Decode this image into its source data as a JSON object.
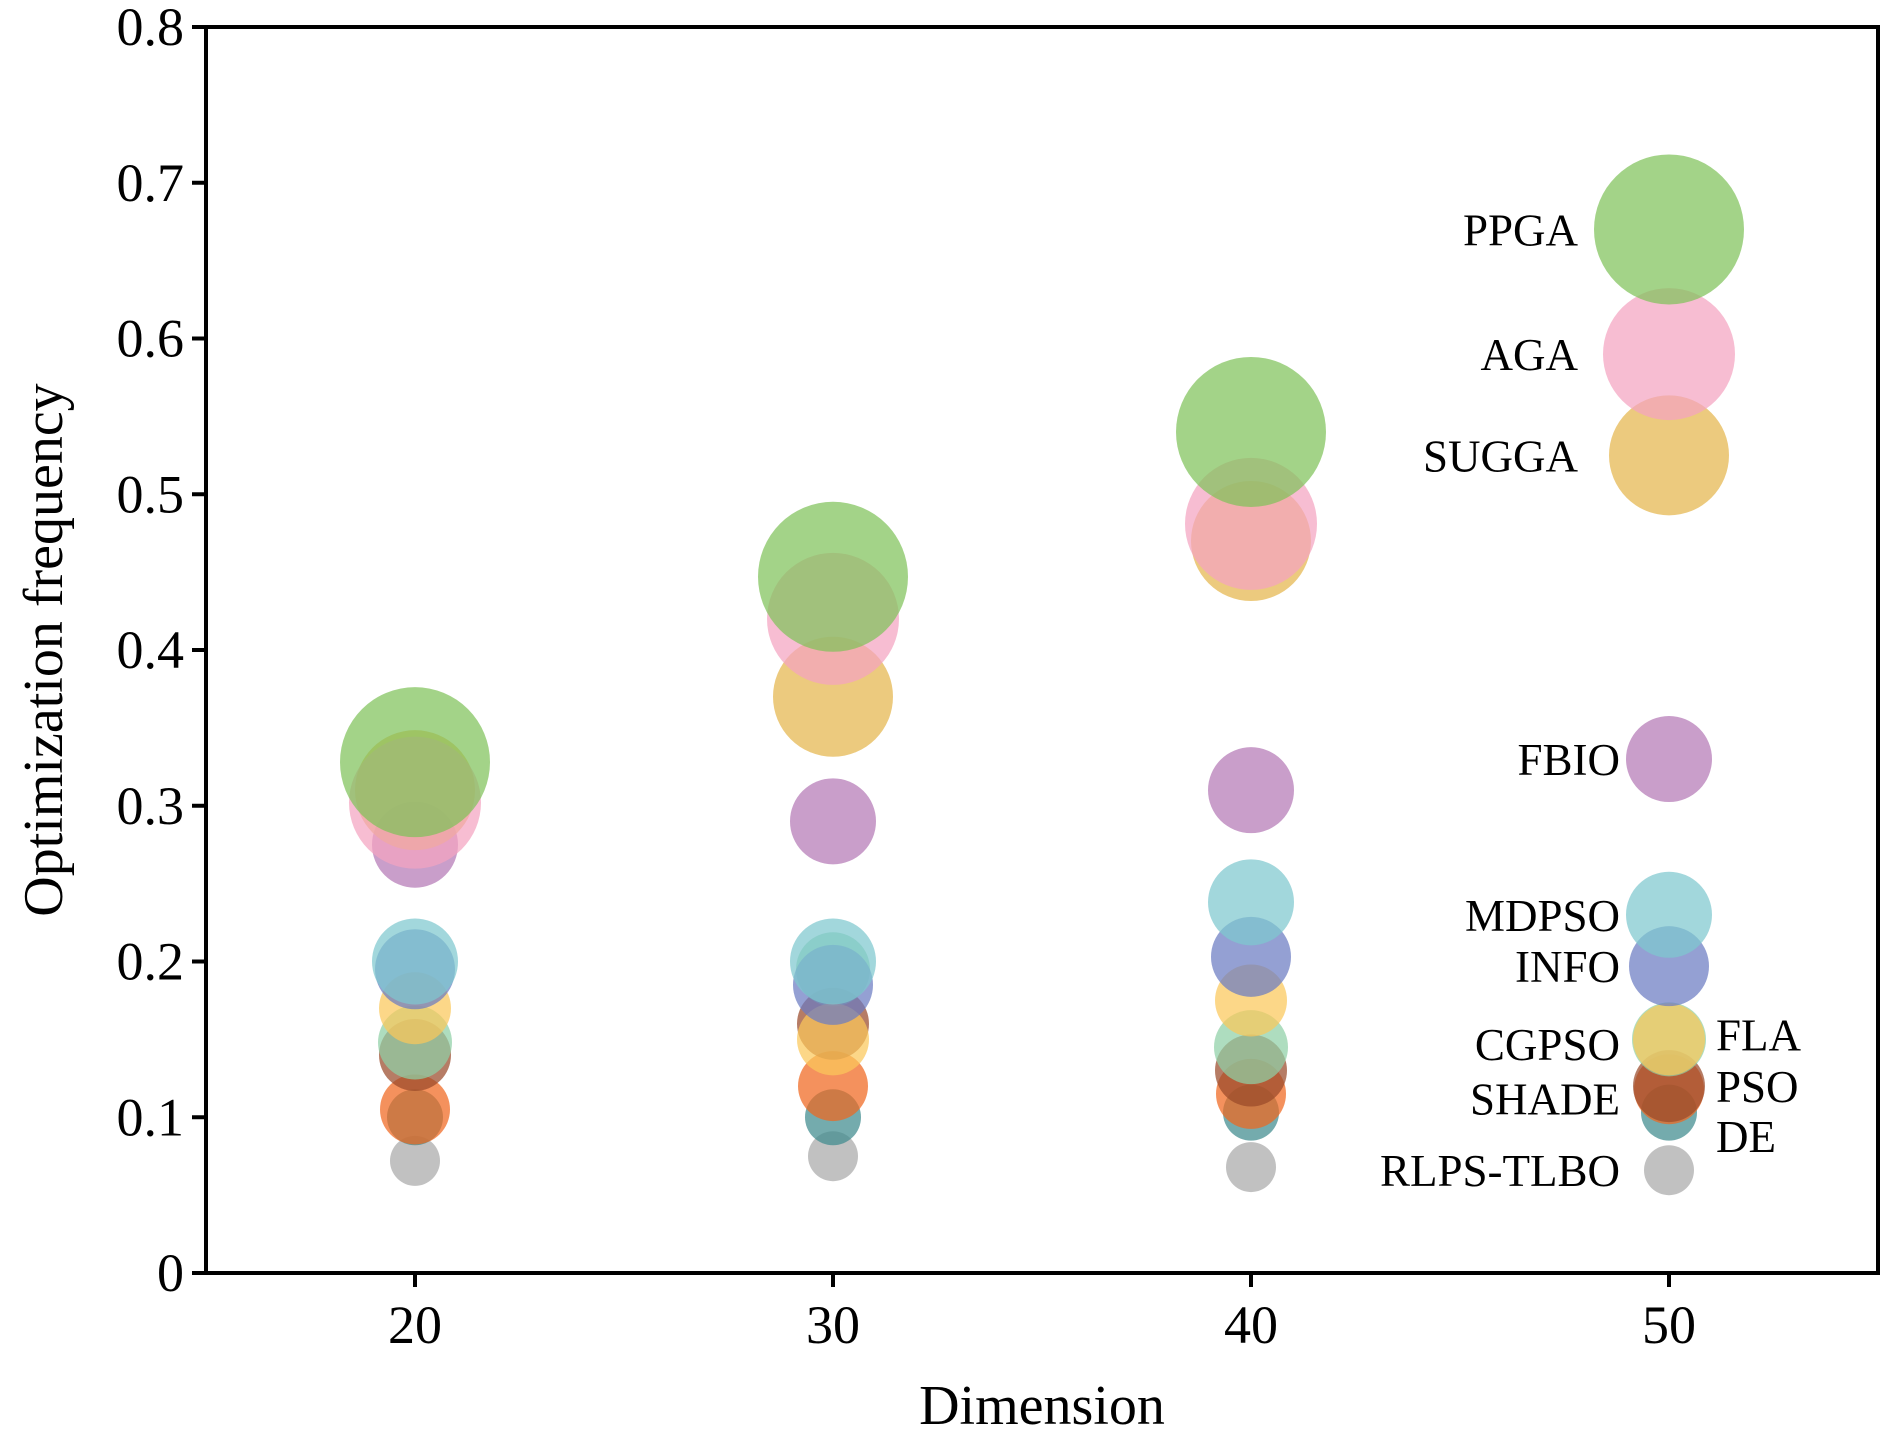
{
  "chart_data": {
    "type": "scatter",
    "subtype": "bubble",
    "title": "",
    "xlabel": "Dimension",
    "ylabel": "Optimization frequency",
    "xlim": [
      15,
      55
    ],
    "ylim": [
      0,
      0.8
    ],
    "xticks": [
      20,
      30,
      40,
      50
    ],
    "xtick_labels": [
      "20",
      "30",
      "40",
      "50"
    ],
    "yticks": [
      0,
      0.1,
      0.2,
      0.3,
      0.4,
      0.5,
      0.6,
      0.7,
      0.8
    ],
    "ytick_labels": [
      "0",
      "0.1",
      "0.2",
      "0.3",
      "0.4",
      "0.5",
      "0.6",
      "0.7",
      "0.8"
    ],
    "x": [
      20,
      30,
      40
    ],
    "grid": false,
    "legend_placement": "right (inline at x=50)",
    "series": [
      {
        "name": "PPGA",
        "color": "#7fc25a",
        "values": [
          0.328,
          0.447,
          0.54
        ]
      },
      {
        "name": "AGA",
        "color": "#f4a3c0",
        "values": [
          0.302,
          0.42,
          0.481
        ]
      },
      {
        "name": "SUGGA",
        "color": "#e4b64c",
        "values": [
          0.31,
          0.37,
          0.47
        ]
      },
      {
        "name": "FBIO",
        "color": "#b479b5",
        "values": [
          0.275,
          0.29,
          0.31
        ]
      },
      {
        "name": "MDPSO",
        "color": "#7ec7cf",
        "values": [
          0.2,
          0.2,
          0.238
        ]
      },
      {
        "name": "INFO",
        "color": "#6b7cc2",
        "values": [
          0.195,
          0.185,
          0.203
        ]
      },
      {
        "name": "CGPSO",
        "color": "#fbc85a",
        "values": [
          0.17,
          0.15,
          0.175
        ]
      },
      {
        "name": "FLA",
        "color": "#8fd0a6",
        "values": [
          0.148,
          0.195,
          0.145
        ]
      },
      {
        "name": "SHADE",
        "color": "#9a4a2a",
        "values": [
          0.14,
          0.16,
          0.13
        ]
      },
      {
        "name": "PSO",
        "color": "#f0661e",
        "values": [
          0.105,
          0.12,
          0.115
        ]
      },
      {
        "name": "DE",
        "color": "#3f8a8e",
        "values": [
          0.1,
          0.1,
          0.103
        ]
      },
      {
        "name": "RLPS-TLBO",
        "color": "#a9a9a9",
        "values": [
          0.072,
          0.075,
          0.068
        ]
      }
    ]
  }
}
